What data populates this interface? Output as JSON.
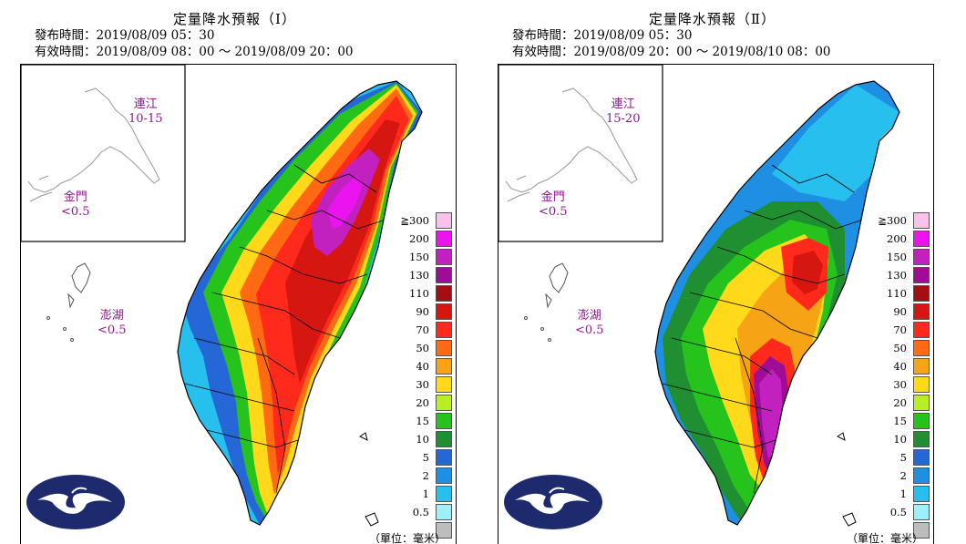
{
  "panels": [
    {
      "title": "定量降水預報（Ⅰ）",
      "issued": "發布時間：2019/08/09 05：30",
      "valid": "有效時間：2019/08/09 08：00 ～ 2019/08/09 20：00",
      "matsu_name": "連江",
      "matsu_value": "10-15",
      "kinmen_name": "金門",
      "kinmen_value": "<0.5",
      "penghu_name": "澎湖",
      "penghu_value": "<0.5",
      "levels_order": [
        "#bdbdbd",
        "#9cf0f7",
        "#27c0ee",
        "#1f8fe3",
        "#2667d8",
        "#1f8f32",
        "#25c31c",
        "#b9ee26",
        "#ffd91a",
        "#f7a316",
        "#ff6a13",
        "#ff2a1c",
        "#d61711",
        "#a30e12",
        "#9f0c96",
        "#c221c0",
        "#ec14ee",
        "#f8c2ea"
      ]
    },
    {
      "title": "定量降水預報（Ⅱ）",
      "issued": "發布時間：2019/08/09 05：30",
      "valid": "有效時間：2019/08/09 20：00 ～ 2019/08/10 08：00",
      "matsu_name": "連江",
      "matsu_value": "15-20",
      "kinmen_name": "金門",
      "kinmen_value": "<0.5",
      "penghu_name": "澎湖",
      "penghu_value": "<0.5"
    }
  ],
  "legend": {
    "labels": [
      "≧300",
      "200",
      "150",
      "130",
      "110",
      "90",
      "70",
      "50",
      "40",
      "30",
      "20",
      "15",
      "10",
      "5",
      "2",
      "1",
      "0.5"
    ],
    "colors": [
      "#f8c2ea",
      "#ec14ee",
      "#c221c0",
      "#9f0c96",
      "#a30e12",
      "#d61711",
      "#ff2a1c",
      "#ff6a13",
      "#f7a316",
      "#ffd91a",
      "#b9ee26",
      "#25c31c",
      "#1f8f32",
      "#2667d8",
      "#1f8fe3",
      "#27c0ee",
      "#9cf0f7",
      "#bdbdbd"
    ],
    "unit": "（單位：毫米）"
  },
  "colors": {
    "outline": "#000000",
    "annotation": "#8b1a8b",
    "logo": "#1e2a6e"
  },
  "icons": [
    "cwb-logo-icon"
  ]
}
